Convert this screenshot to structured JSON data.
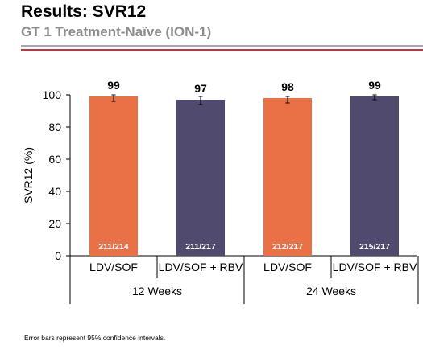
{
  "header": {
    "title": "Results: SVR12",
    "subtitle": "GT 1 Treatment-Naïve (ION-1)"
  },
  "footnote": "Error bars represent 95% confidence intervals.",
  "colors": {
    "ldv_sof": "#ea7046",
    "ldv_sof_rbv": "#4f4a6e",
    "rule_gray": "#a6a6a6",
    "rule_red": "#b03a48"
  },
  "chart_data": {
    "type": "bar",
    "title": "",
    "xlabel": "",
    "ylabel": "SVR12 (%)",
    "ylim": [
      0,
      100
    ],
    "yticks": [
      0,
      20,
      40,
      60,
      80,
      100
    ],
    "grid": false,
    "categories": [
      "LDV/SOF",
      "LDV/SOF + RBV",
      "LDV/SOF",
      "LDV/SOF + RBV"
    ],
    "groups": [
      {
        "label": "12 Weeks",
        "categories": [
          0,
          1
        ]
      },
      {
        "label": "24 Weeks",
        "categories": [
          2,
          3
        ]
      }
    ],
    "values": [
      99,
      97,
      98,
      99
    ],
    "value_labels": [
      "99",
      "97",
      "98",
      "99"
    ],
    "counts": [
      "211/214",
      "211/217",
      "212/217",
      "215/217"
    ],
    "error_bars": [
      {
        "low": 96,
        "high": 100
      },
      {
        "low": 94,
        "high": 99
      },
      {
        "low": 95,
        "high": 99
      },
      {
        "low": 97,
        "high": 100
      }
    ],
    "bar_colors": [
      "#ea7046",
      "#4f4a6e",
      "#ea7046",
      "#4f4a6e"
    ]
  }
}
